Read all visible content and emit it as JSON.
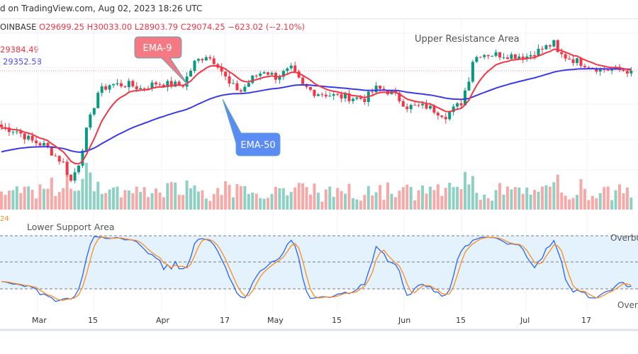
{
  "header": {
    "text": "d on TradingView.com, Aug 02, 2023 18:26 UTC"
  },
  "ohlc": {
    "symbol": "OINBASE",
    "open": "O29699.25",
    "high": "H30033.00",
    "low": "L28903.79",
    "close": "C29074.25",
    "change": "−623.02 (−2.10%)"
  },
  "indicators": {
    "ema9_value": "29384.49",
    "ema50_value": "29352.58",
    "stoch_value": "24"
  },
  "annotations": {
    "ema9": "EMA-9",
    "ema50": "EMA-50",
    "upper": "Upper Resistance Area",
    "lower": "Lower Support Area",
    "overbought": "Overbo",
    "oversold": "Over"
  },
  "colors": {
    "up": "#089981",
    "down": "#f23645",
    "ema9": "#f23645",
    "ema50": "#3a3ae8",
    "stoch_k": "#2962ff",
    "stoch_d": "#ff8c1a",
    "band": "#e3f2fd"
  },
  "chart_data": {
    "type": "candlestick",
    "x_ticks": [
      "Mar",
      "15",
      "Apr",
      "17",
      "May",
      "15",
      "Jun",
      "15",
      "Jul",
      "17"
    ],
    "close_anchors": [
      [
        "2023-02-20",
        24700
      ],
      [
        "2023-02-24",
        24400
      ],
      [
        "2023-02-28",
        23600
      ],
      [
        "2023-03-03",
        23300
      ],
      [
        "2023-03-08",
        21900
      ],
      [
        "2023-03-10",
        20500
      ],
      [
        "2023-03-12",
        21900
      ],
      [
        "2023-03-14",
        24400
      ],
      [
        "2023-03-17",
        27400
      ],
      [
        "2023-03-20",
        28000
      ],
      [
        "2023-03-25",
        28000
      ],
      [
        "2023-03-28",
        27700
      ],
      [
        "2023-04-01",
        28100
      ],
      [
        "2023-04-05",
        28000
      ],
      [
        "2023-04-08",
        28000
      ],
      [
        "2023-04-11",
        29700
      ],
      [
        "2023-04-14",
        30300
      ],
      [
        "2023-04-17",
        29600
      ],
      [
        "2023-04-20",
        28000
      ],
      [
        "2023-04-23",
        27500
      ],
      [
        "2023-04-26",
        28500
      ],
      [
        "2023-04-29",
        29100
      ],
      [
        "2023-05-02",
        28600
      ],
      [
        "2023-05-06",
        29200
      ],
      [
        "2023-05-09",
        27900
      ],
      [
        "2023-05-12",
        27400
      ],
      [
        "2023-05-18",
        27100
      ],
      [
        "2023-05-25",
        26900
      ],
      [
        "2023-05-28",
        27700
      ],
      [
        "2023-06-01",
        27400
      ],
      [
        "2023-06-05",
        26300
      ],
      [
        "2023-06-10",
        26300
      ],
      [
        "2023-06-15",
        25600
      ],
      [
        "2023-06-19",
        26600
      ],
      [
        "2023-06-21",
        28500
      ],
      [
        "2023-06-22",
        29900
      ],
      [
        "2023-06-24",
        30400
      ],
      [
        "2023-07-01",
        30300
      ],
      [
        "2023-07-06",
        30200
      ],
      [
        "2023-07-13",
        31200
      ],
      [
        "2023-07-14",
        30400
      ],
      [
        "2023-07-20",
        29700
      ],
      [
        "2023-07-25",
        29200
      ],
      [
        "2023-08-02",
        29074
      ]
    ],
    "indicators": [
      "EMA 9",
      "EMA 50",
      "Volume",
      "Stochastic"
    ],
    "stoch_levels": [
      80,
      50,
      20
    ]
  }
}
